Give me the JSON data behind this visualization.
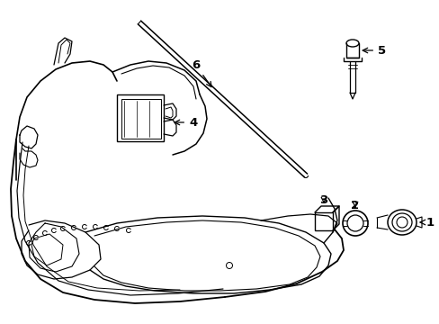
{
  "background_color": "#ffffff",
  "line_color": "#000000",
  "lw": 1.0
}
